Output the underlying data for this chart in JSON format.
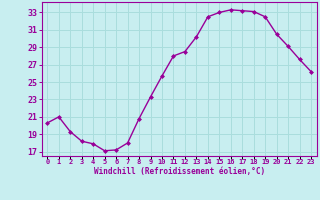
{
  "x": [
    0,
    1,
    2,
    3,
    4,
    5,
    6,
    7,
    8,
    9,
    10,
    11,
    12,
    13,
    14,
    15,
    16,
    17,
    18,
    19,
    20,
    21,
    22,
    23
  ],
  "y": [
    20.3,
    21.0,
    19.3,
    18.2,
    17.9,
    17.1,
    17.2,
    18.0,
    20.8,
    23.3,
    25.7,
    28.0,
    28.5,
    30.2,
    32.5,
    33.0,
    33.3,
    33.2,
    33.1,
    32.5,
    30.5,
    29.1,
    27.6,
    26.2
  ],
  "bg_color": "#c8eef0",
  "grid_color": "#aadddd",
  "line_color": "#990099",
  "marker_color": "#990099",
  "xlabel": "Windchill (Refroidissement éolien,°C)",
  "yticks": [
    17,
    19,
    21,
    23,
    25,
    27,
    29,
    31,
    33
  ],
  "ylim": [
    16.5,
    34.2
  ],
  "xlim": [
    -0.5,
    23.5
  ]
}
